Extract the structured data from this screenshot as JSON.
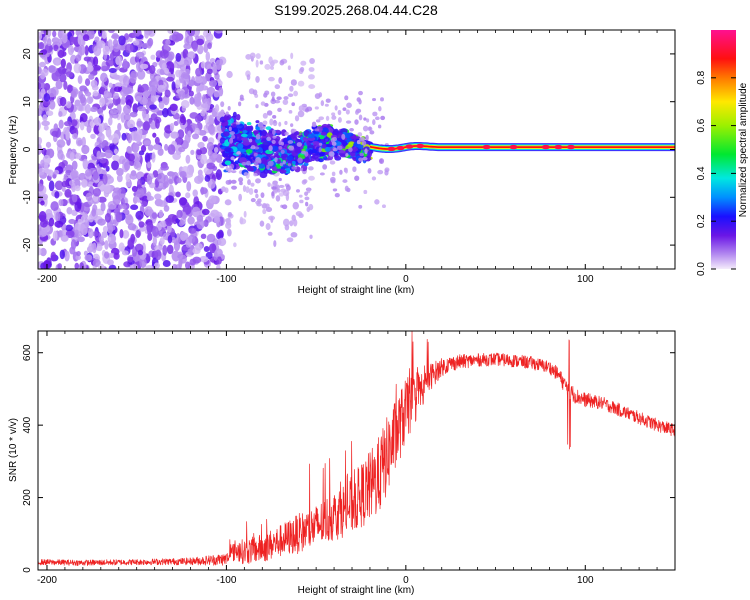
{
  "title": "S199.2025.268.04.44.C28",
  "colors": {
    "spectro_low": "#e6d2f7",
    "spectro_mid": "#6a16e6",
    "snr_line": "#ee2222",
    "frame": "#000000"
  },
  "chart_data": [
    {
      "type": "heatmap",
      "name": "spectrogram",
      "xlabel": "Height of straight line (km)",
      "ylabel": "Frequency (Hz)",
      "xlim": [
        -205,
        150
      ],
      "ylim": [
        -25,
        25
      ],
      "xticks": [
        -200,
        -100,
        0,
        100
      ],
      "xtick_labels": [
        "-200",
        "-100",
        "0",
        "100"
      ],
      "yticks": [
        -20,
        -10,
        0,
        10,
        20
      ],
      "ytick_labels": [
        "-20",
        "-10",
        "0",
        "10",
        "20"
      ],
      "colorbar": {
        "label": "Normalized spectral amplitude",
        "range": [
          0,
          1
        ],
        "ticks": [
          0.0,
          0.2,
          0.4,
          0.6,
          0.8
        ],
        "tick_labels": [
          "0.0",
          "0.2",
          "0.4",
          "0.6",
          "0.8"
        ],
        "colormap": "rainbow (violet-blue-cyan-green-yellow-red-magenta)"
      },
      "features": [
        {
          "region": "noise",
          "x_range": [
            -205,
            -102
          ],
          "freq_range": [
            -25,
            25
          ],
          "amplitude": 0.1
        },
        {
          "region": "transition",
          "x_range": [
            -102,
            -20
          ],
          "freq_range": [
            -6,
            7
          ],
          "amplitude": 0.3
        },
        {
          "region": "tone",
          "x_range": [
            -20,
            150
          ],
          "freq_hz": 0.5,
          "amplitude": 0.9
        }
      ]
    },
    {
      "type": "line",
      "name": "snr",
      "xlabel": "Height of straight line (km)",
      "ylabel": "SNR (10 * v/v)",
      "xlim": [
        -205,
        150
      ],
      "ylim": [
        0,
        660
      ],
      "xticks": [
        -200,
        -100,
        0,
        100
      ],
      "xtick_labels": [
        "-200",
        "-100",
        "0",
        "100"
      ],
      "yticks": [
        0,
        200,
        400,
        600
      ],
      "ytick_labels": [
        "0",
        "200",
        "400",
        "600"
      ],
      "series": [
        {
          "name": "SNR",
          "x": [
            -205,
            -180,
            -150,
            -120,
            -100,
            -95,
            -90,
            -80,
            -70,
            -60,
            -50,
            -40,
            -30,
            -20,
            -15,
            -10,
            -5,
            0,
            5,
            10,
            15,
            20,
            25,
            30,
            40,
            50,
            60,
            70,
            80,
            85,
            90,
            95,
            100,
            110,
            120,
            130,
            140,
            150
          ],
          "y": [
            22,
            20,
            22,
            24,
            30,
            55,
            50,
            60,
            80,
            100,
            120,
            150,
            180,
            230,
            260,
            320,
            380,
            440,
            470,
            510,
            540,
            560,
            570,
            575,
            580,
            582,
            578,
            572,
            560,
            540,
            500,
            480,
            470,
            460,
            440,
            420,
            400,
            385
          ],
          "noise": [
            8,
            8,
            8,
            10,
            18,
            30,
            35,
            40,
            45,
            55,
            60,
            70,
            80,
            100,
            110,
            110,
            100,
            90,
            70,
            50,
            35,
            25,
            22,
            20,
            18,
            18,
            18,
            18,
            18,
            20,
            25,
            22,
            20,
            18,
            18,
            18,
            18,
            18
          ]
        }
      ]
    }
  ]
}
